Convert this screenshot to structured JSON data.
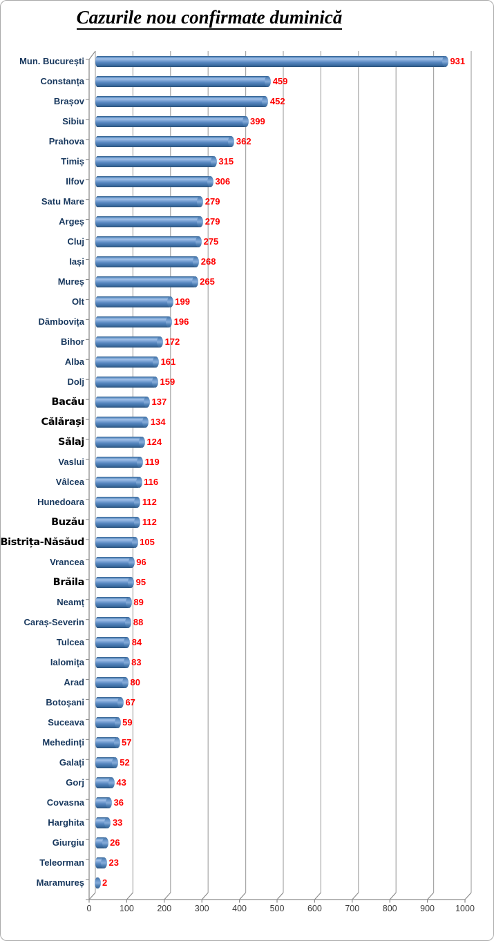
{
  "title": "Cazurile nou confirmate duminică",
  "chart_data": {
    "type": "bar",
    "orientation": "horizontal",
    "title": "Cazurile nou confirmate duminică",
    "categories": [
      "Mun. București",
      "Constanța",
      "Brașov",
      "Sibiu",
      "Prahova",
      "Timiș",
      "Ilfov",
      "Satu Mare",
      "Argeș",
      "Cluj",
      "Iași",
      "Mureș",
      "Olt",
      "Dâmbovița",
      "Bihor",
      "Alba",
      "Dolj",
      "Bacău",
      "Călărași",
      "Sălaj",
      "Vaslui",
      "Vâlcea",
      "Hunedoara",
      "Buzău",
      "Bistrița-Năsăud",
      "Vrancea",
      "Brăila",
      "Neamț",
      "Caraș-Severin",
      "Tulcea",
      "Ialomița",
      "Arad",
      "Botoșani",
      "Suceava",
      "Mehedinți",
      "Galați",
      "Gorj",
      "Covasna",
      "Harghita",
      "Giurgiu",
      "Teleorman",
      "Maramureș"
    ],
    "values": [
      931,
      459,
      452,
      399,
      362,
      315,
      306,
      279,
      279,
      275,
      268,
      265,
      199,
      196,
      172,
      161,
      159,
      137,
      134,
      124,
      119,
      116,
      112,
      112,
      105,
      96,
      95,
      89,
      88,
      84,
      83,
      80,
      67,
      59,
      57,
      52,
      43,
      36,
      33,
      26,
      23,
      2
    ],
    "xlabel": "",
    "ylabel": "",
    "xlim": [
      0,
      1000
    ],
    "x_ticks": [
      0,
      100,
      200,
      300,
      400,
      500,
      600,
      700,
      800,
      900,
      1000
    ],
    "grid": true,
    "legend": "none",
    "value_labels": true,
    "colors": {
      "bar": "#4f81bd",
      "value_label": "#ff0000",
      "category_label": "#17375d",
      "gridline": "#a6a6a6",
      "axis": "#8c8c8c",
      "title": "#000000"
    }
  }
}
